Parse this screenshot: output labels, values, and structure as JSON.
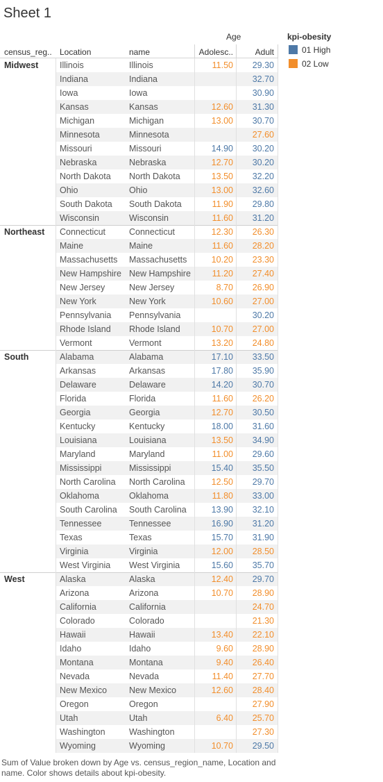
{
  "sheet": {
    "title": "Sheet 1",
    "caption": "Sum of Value broken down by Age vs. census_region_name, Location and name.  Color shows details about kpi-obesity."
  },
  "headers": {
    "age": "Age",
    "region": "census_reg..",
    "location": "Location",
    "name": "name",
    "adolescent": "Adolesc..",
    "adult": "Adult"
  },
  "legend": {
    "title": "kpi-obesity",
    "items": [
      {
        "label": "01 High",
        "color": "#4e79a7"
      },
      {
        "label": "02 Low",
        "color": "#f28e2b"
      }
    ]
  },
  "colors": {
    "high": "#4e79a7",
    "low": "#f28e2b"
  },
  "regions": [
    {
      "name": "Midwest",
      "rows": [
        {
          "loc": "Illinois",
          "name": "Illinois",
          "ado": "11.50",
          "ado_c": "low",
          "adult": "29.30",
          "adult_c": "high"
        },
        {
          "loc": "Indiana",
          "name": "Indiana",
          "ado": "",
          "ado_c": "",
          "adult": "32.70",
          "adult_c": "high"
        },
        {
          "loc": "Iowa",
          "name": "Iowa",
          "ado": "",
          "ado_c": "",
          "adult": "30.90",
          "adult_c": "high"
        },
        {
          "loc": "Kansas",
          "name": "Kansas",
          "ado": "12.60",
          "ado_c": "low",
          "adult": "31.30",
          "adult_c": "high"
        },
        {
          "loc": "Michigan",
          "name": "Michigan",
          "ado": "13.00",
          "ado_c": "low",
          "adult": "30.70",
          "adult_c": "high"
        },
        {
          "loc": "Minnesota",
          "name": "Minnesota",
          "ado": "",
          "ado_c": "",
          "adult": "27.60",
          "adult_c": "low"
        },
        {
          "loc": "Missouri",
          "name": "Missouri",
          "ado": "14.90",
          "ado_c": "high",
          "adult": "30.20",
          "adult_c": "high"
        },
        {
          "loc": "Nebraska",
          "name": "Nebraska",
          "ado": "12.70",
          "ado_c": "low",
          "adult": "30.20",
          "adult_c": "high"
        },
        {
          "loc": "North Dakota",
          "name": "North Dakota",
          "ado": "13.50",
          "ado_c": "low",
          "adult": "32.20",
          "adult_c": "high"
        },
        {
          "loc": "Ohio",
          "name": "Ohio",
          "ado": "13.00",
          "ado_c": "low",
          "adult": "32.60",
          "adult_c": "high"
        },
        {
          "loc": "South Dakota",
          "name": "South Dakota",
          "ado": "11.90",
          "ado_c": "low",
          "adult": "29.80",
          "adult_c": "high"
        },
        {
          "loc": "Wisconsin",
          "name": "Wisconsin",
          "ado": "11.60",
          "ado_c": "low",
          "adult": "31.20",
          "adult_c": "high"
        }
      ]
    },
    {
      "name": "Northeast",
      "rows": [
        {
          "loc": "Connecticut",
          "name": "Connecticut",
          "ado": "12.30",
          "ado_c": "low",
          "adult": "26.30",
          "adult_c": "low"
        },
        {
          "loc": "Maine",
          "name": "Maine",
          "ado": "11.60",
          "ado_c": "low",
          "adult": "28.20",
          "adult_c": "low"
        },
        {
          "loc": "Massachusetts",
          "name": "Massachusetts",
          "ado": "10.20",
          "ado_c": "low",
          "adult": "23.30",
          "adult_c": "low"
        },
        {
          "loc": "New Hampshire",
          "name": "New Hampshire",
          "ado": "11.20",
          "ado_c": "low",
          "adult": "27.40",
          "adult_c": "low"
        },
        {
          "loc": "New Jersey",
          "name": "New Jersey",
          "ado": "8.70",
          "ado_c": "low",
          "adult": "26.90",
          "adult_c": "low"
        },
        {
          "loc": "New York",
          "name": "New York",
          "ado": "10.60",
          "ado_c": "low",
          "adult": "27.00",
          "adult_c": "low"
        },
        {
          "loc": "Pennsylvania",
          "name": "Pennsylvania",
          "ado": "",
          "ado_c": "",
          "adult": "30.20",
          "adult_c": "high"
        },
        {
          "loc": "Rhode Island",
          "name": "Rhode Island",
          "ado": "10.70",
          "ado_c": "low",
          "adult": "27.00",
          "adult_c": "low"
        },
        {
          "loc": "Vermont",
          "name": "Vermont",
          "ado": "13.20",
          "ado_c": "low",
          "adult": "24.80",
          "adult_c": "low"
        }
      ]
    },
    {
      "name": "South",
      "rows": [
        {
          "loc": "Alabama",
          "name": "Alabama",
          "ado": "17.10",
          "ado_c": "high",
          "adult": "33.50",
          "adult_c": "high"
        },
        {
          "loc": "Arkansas",
          "name": "Arkansas",
          "ado": "17.80",
          "ado_c": "high",
          "adult": "35.90",
          "adult_c": "high"
        },
        {
          "loc": "Delaware",
          "name": "Delaware",
          "ado": "14.20",
          "ado_c": "high",
          "adult": "30.70",
          "adult_c": "high"
        },
        {
          "loc": "Florida",
          "name": "Florida",
          "ado": "11.60",
          "ado_c": "low",
          "adult": "26.20",
          "adult_c": "low"
        },
        {
          "loc": "Georgia",
          "name": "Georgia",
          "ado": "12.70",
          "ado_c": "low",
          "adult": "30.50",
          "adult_c": "high"
        },
        {
          "loc": "Kentucky",
          "name": "Kentucky",
          "ado": "18.00",
          "ado_c": "high",
          "adult": "31.60",
          "adult_c": "high"
        },
        {
          "loc": "Louisiana",
          "name": "Louisiana",
          "ado": "13.50",
          "ado_c": "low",
          "adult": "34.90",
          "adult_c": "high"
        },
        {
          "loc": "Maryland",
          "name": "Maryland",
          "ado": "11.00",
          "ado_c": "low",
          "adult": "29.60",
          "adult_c": "high"
        },
        {
          "loc": "Mississippi",
          "name": "Mississippi",
          "ado": "15.40",
          "ado_c": "high",
          "adult": "35.50",
          "adult_c": "high"
        },
        {
          "loc": "North Carolina",
          "name": "North Carolina",
          "ado": "12.50",
          "ado_c": "low",
          "adult": "29.70",
          "adult_c": "high"
        },
        {
          "loc": "Oklahoma",
          "name": "Oklahoma",
          "ado": "11.80",
          "ado_c": "low",
          "adult": "33.00",
          "adult_c": "high"
        },
        {
          "loc": "South Carolina",
          "name": "South Carolina",
          "ado": "13.90",
          "ado_c": "high",
          "adult": "32.10",
          "adult_c": "high"
        },
        {
          "loc": "Tennessee",
          "name": "Tennessee",
          "ado": "16.90",
          "ado_c": "high",
          "adult": "31.20",
          "adult_c": "high"
        },
        {
          "loc": "Texas",
          "name": "Texas",
          "ado": "15.70",
          "ado_c": "high",
          "adult": "31.90",
          "adult_c": "high"
        },
        {
          "loc": "Virginia",
          "name": "Virginia",
          "ado": "12.00",
          "ado_c": "low",
          "adult": "28.50",
          "adult_c": "low"
        },
        {
          "loc": "West Virginia",
          "name": "West Virginia",
          "ado": "15.60",
          "ado_c": "high",
          "adult": "35.70",
          "adult_c": "high"
        }
      ]
    },
    {
      "name": "West",
      "rows": [
        {
          "loc": "Alaska",
          "name": "Alaska",
          "ado": "12.40",
          "ado_c": "low",
          "adult": "29.70",
          "adult_c": "high"
        },
        {
          "loc": "Arizona",
          "name": "Arizona",
          "ado": "10.70",
          "ado_c": "low",
          "adult": "28.90",
          "adult_c": "low"
        },
        {
          "loc": "California",
          "name": "California",
          "ado": "",
          "ado_c": "",
          "adult": "24.70",
          "adult_c": "low"
        },
        {
          "loc": "Colorado",
          "name": "Colorado",
          "ado": "",
          "ado_c": "",
          "adult": "21.30",
          "adult_c": "low"
        },
        {
          "loc": "Hawaii",
          "name": "Hawaii",
          "ado": "13.40",
          "ado_c": "low",
          "adult": "22.10",
          "adult_c": "low"
        },
        {
          "loc": "Idaho",
          "name": "Idaho",
          "ado": "9.60",
          "ado_c": "low",
          "adult": "28.90",
          "adult_c": "low"
        },
        {
          "loc": "Montana",
          "name": "Montana",
          "ado": "9.40",
          "ado_c": "low",
          "adult": "26.40",
          "adult_c": "low"
        },
        {
          "loc": "Nevada",
          "name": "Nevada",
          "ado": "11.40",
          "ado_c": "low",
          "adult": "27.70",
          "adult_c": "low"
        },
        {
          "loc": "New Mexico",
          "name": "New Mexico",
          "ado": "12.60",
          "ado_c": "low",
          "adult": "28.40",
          "adult_c": "low"
        },
        {
          "loc": "Oregon",
          "name": "Oregon",
          "ado": "",
          "ado_c": "",
          "adult": "27.90",
          "adult_c": "low"
        },
        {
          "loc": "Utah",
          "name": "Utah",
          "ado": "6.40",
          "ado_c": "low",
          "adult": "25.70",
          "adult_c": "low"
        },
        {
          "loc": "Washington",
          "name": "Washington",
          "ado": "",
          "ado_c": "",
          "adult": "27.30",
          "adult_c": "low"
        },
        {
          "loc": "Wyoming",
          "name": "Wyoming",
          "ado": "10.70",
          "ado_c": "low",
          "adult": "29.50",
          "adult_c": "high"
        }
      ]
    }
  ]
}
